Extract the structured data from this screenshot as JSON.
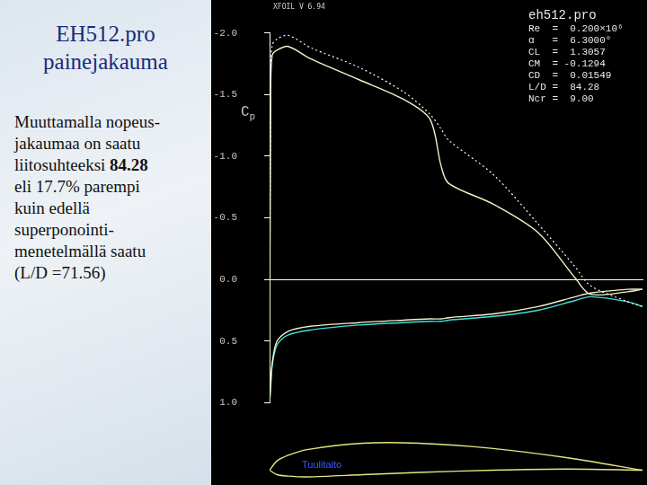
{
  "slide": {
    "title": [
      "EH512.pro",
      "painejakauma"
    ],
    "body": [
      [
        {
          "text": "Muuttamalla nopeus-"
        }
      ],
      [
        {
          "text": "jakaumaa on saatu"
        }
      ],
      [
        {
          "text": "liitosuhteeksi "
        },
        {
          "text": "84.28",
          "bold": true
        }
      ],
      [
        {
          "text": "eli 17.7% parempi"
        }
      ],
      [
        {
          "text": "kuin edellä"
        }
      ],
      [
        {
          "text": "superponointi-"
        }
      ],
      [
        {
          "text": "menetelmällä saatu"
        }
      ],
      [
        {
          "text": "(L/D =71.56)"
        }
      ]
    ]
  },
  "chart_data": [
    {
      "type": "line",
      "ylabel": "Cp",
      "annotations": {
        "top_left": [
          "XFOIL",
          "V 6.94"
        ],
        "top_right": [
          "eh512.pro",
          "Re  =  0.200×10⁶",
          "α   =  6.3000°",
          "CL  =  1.3057",
          "CM  = -0.1294",
          "CD  =  0.01549",
          "L/D =  84.28",
          "Ncr =  9.00"
        ]
      },
      "xlim": [
        0,
        1
      ],
      "ylim": [
        1.0,
        -2.0
      ],
      "yticks": [
        {
          "value": -2,
          "label": "-2.0"
        },
        -1.5,
        {
          "value": -1,
          "label": "-1.0"
        },
        -0.5,
        {
          "value": 0,
          "label": "0.0"
        },
        0.5,
        {
          "value": 1,
          "label": "1.0"
        }
      ],
      "tick_labels": "y",
      "grid": false,
      "x": [
        0,
        0.003,
        0.007,
        0.02,
        0.05,
        0.11,
        0.24,
        0.36,
        0.43,
        0.46,
        0.48,
        0.6,
        0.72,
        0.82,
        0.86,
        0.96,
        1.0
      ],
      "series": [
        {
          "color": "#f2f2c8",
          "line_style": "solid",
          "values": [
            1.0,
            -1.5,
            -1.82,
            -1.86,
            -1.89,
            -1.79,
            -1.62,
            -1.46,
            -1.3,
            -0.92,
            -0.78,
            -0.61,
            -0.38,
            -0.01,
            0.12,
            0.1,
            0.08
          ]
        },
        {
          "color": "#ffffff",
          "line_style": "dotted",
          "values": [
            1.0,
            -1.6,
            -1.9,
            -1.95,
            -1.98,
            -1.88,
            -1.72,
            -1.52,
            -1.34,
            -1.22,
            -1.13,
            -0.85,
            -0.45,
            -0.1,
            0.05,
            0.18,
            0.22
          ]
        },
        {
          "color": "#f2f2c8",
          "line_style": "solid",
          "values": [
            1.0,
            0.85,
            0.68,
            0.5,
            0.42,
            0.38,
            0.35,
            0.33,
            0.32,
            0.32,
            0.31,
            0.28,
            0.22,
            0.14,
            0.11,
            0.08,
            0.08
          ]
        },
        {
          "color": "#40e0e0",
          "line_style": "solid",
          "values": [
            1.0,
            0.87,
            0.7,
            0.53,
            0.45,
            0.41,
            0.37,
            0.35,
            0.34,
            0.34,
            0.33,
            0.3,
            0.25,
            0.17,
            0.14,
            0.18,
            0.22
          ]
        }
      ]
    },
    {
      "type": "line",
      "annotations": [
        "Tuulitaito"
      ],
      "xlim": [
        0,
        1
      ],
      "ylim": [
        -0.03,
        0.09
      ],
      "tick_labels": false,
      "grid": false,
      "x": [
        0,
        0.02,
        0.05,
        0.1,
        0.25,
        0.4,
        0.6,
        0.8,
        1.0
      ],
      "series": [
        {
          "color": "#e6e680",
          "line_style": "solid",
          "values": [
            0,
            0.025,
            0.04,
            0.055,
            0.072,
            0.072,
            0.058,
            0.033,
            0
          ]
        },
        {
          "color": "#e6e680",
          "line_style": "solid",
          "values": [
            0,
            -0.012,
            -0.016,
            -0.018,
            -0.012,
            -0.006,
            0,
            0.003,
            0
          ]
        }
      ]
    }
  ]
}
